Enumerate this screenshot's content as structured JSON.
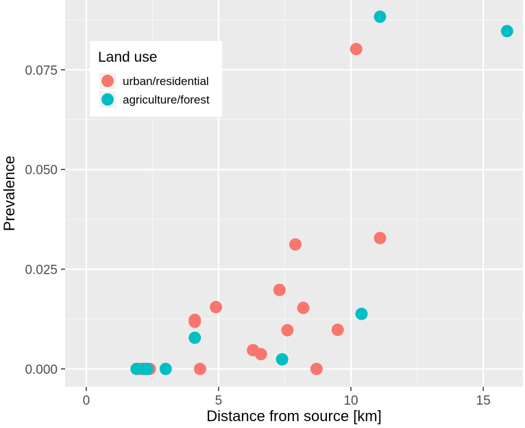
{
  "chart_data": {
    "type": "scatter",
    "title": "",
    "xlabel": "Distance from source [km]",
    "ylabel": "Prevalence",
    "xlim": [
      -0.8,
      16.5
    ],
    "ylim": [
      -0.0045,
      0.0925
    ],
    "x_ticks": [
      0,
      5,
      10,
      15
    ],
    "x_tick_labels": [
      "0",
      "5",
      "10",
      "15"
    ],
    "y_ticks": [
      0.0,
      0.025,
      0.05,
      0.075
    ],
    "y_tick_labels": [
      "0.000",
      "0.025",
      "0.050",
      "0.075"
    ],
    "grid": true,
    "legend": {
      "title": "Land use",
      "placement": "top-left",
      "entries": [
        "urban/residential",
        "agriculture/forest"
      ]
    },
    "series": [
      {
        "name": "urban/residential",
        "color": "#F8766D",
        "points": [
          {
            "x": 2.0,
            "y": 0.0
          },
          {
            "x": 2.1,
            "y": 0.0
          },
          {
            "x": 2.4,
            "y": 0.0
          },
          {
            "x": 4.3,
            "y": 0.0
          },
          {
            "x": 8.7,
            "y": 0.0
          },
          {
            "x": 4.1,
            "y": 0.0123
          },
          {
            "x": 4.1,
            "y": 0.0118
          },
          {
            "x": 4.9,
            "y": 0.0155
          },
          {
            "x": 6.3,
            "y": 0.0047
          },
          {
            "x": 6.6,
            "y": 0.0037
          },
          {
            "x": 7.3,
            "y": 0.0198
          },
          {
            "x": 7.6,
            "y": 0.0097
          },
          {
            "x": 7.9,
            "y": 0.0312
          },
          {
            "x": 8.2,
            "y": 0.0153
          },
          {
            "x": 9.5,
            "y": 0.0098
          },
          {
            "x": 10.2,
            "y": 0.0802
          },
          {
            "x": 11.1,
            "y": 0.0328
          }
        ]
      },
      {
        "name": "agriculture/forest",
        "color": "#00BFC4",
        "points": [
          {
            "x": 1.9,
            "y": 0.0
          },
          {
            "x": 2.2,
            "y": 0.0
          },
          {
            "x": 2.3,
            "y": 0.0
          },
          {
            "x": 3.0,
            "y": 0.0
          },
          {
            "x": 4.1,
            "y": 0.0078
          },
          {
            "x": 7.4,
            "y": 0.0024
          },
          {
            "x": 10.4,
            "y": 0.0138
          },
          {
            "x": 11.1,
            "y": 0.0883
          },
          {
            "x": 15.9,
            "y": 0.0847
          }
        ]
      }
    ]
  }
}
